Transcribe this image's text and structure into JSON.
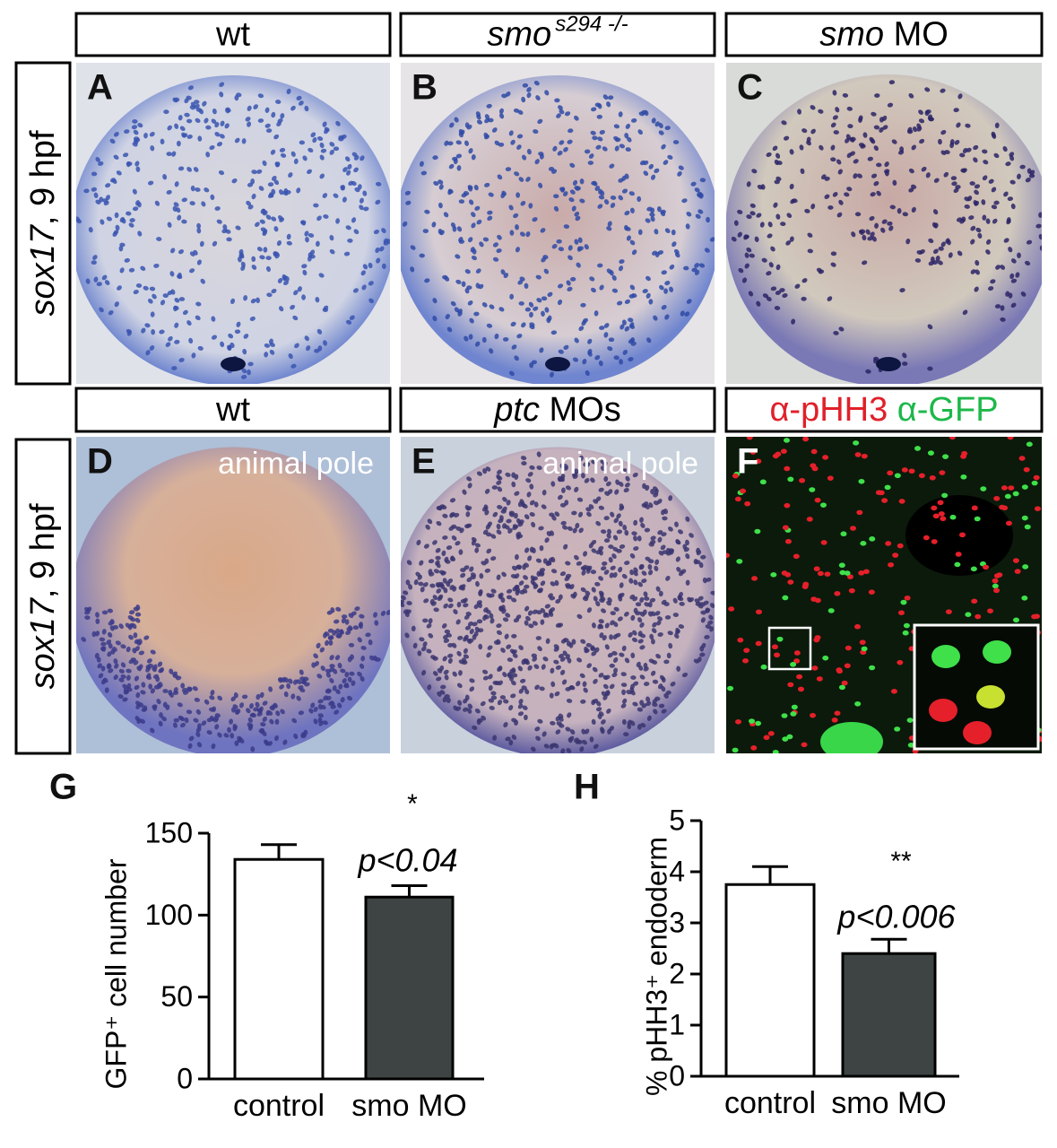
{
  "panels": [
    {
      "label": "A",
      "header": "wt"
    },
    {
      "label": "B",
      "header": {
        "gene": "smo",
        "allele": "s294 -/-"
      }
    },
    {
      "label": "C",
      "header": {
        "gene": "smo",
        "suffix": "MO"
      }
    },
    {
      "label": "D",
      "header": "wt",
      "note": "animal pole"
    },
    {
      "label": "E",
      "header": {
        "gene": "ptc",
        "suffix": "MOs"
      },
      "note": "animal pole"
    },
    {
      "label": "F",
      "header": {
        "red": "α-pHH3",
        "green": "α-GFP"
      }
    }
  ],
  "row_labels": [
    {
      "gene": "sox17",
      "stage": ", 9 hpf"
    },
    {
      "gene": "sox17",
      "stage": ", 9 hpf"
    }
  ],
  "chart_data": [
    {
      "type": "bar",
      "panel_label": "G",
      "ylabel": "GFP⁺ cell number",
      "categories": [
        "control",
        "smo MO"
      ],
      "values": [
        134,
        111
      ],
      "errors": [
        9,
        7
      ],
      "colors": [
        "#ffffff",
        "#3d4443"
      ],
      "ylim": [
        0,
        150
      ],
      "yticks": [
        0,
        50,
        100,
        150
      ],
      "annotation": "*",
      "p_value": "p<0.04"
    },
    {
      "type": "bar",
      "panel_label": "H",
      "ylabel": "% pHH3⁺ endoderm",
      "categories": [
        "control",
        "smo MO"
      ],
      "values": [
        3.75,
        2.4
      ],
      "errors": [
        0.35,
        0.28
      ],
      "colors": [
        "#ffffff",
        "#3d4443"
      ],
      "ylim": [
        0,
        5
      ],
      "yticks": [
        0,
        1,
        2,
        3,
        4,
        5
      ],
      "annotation": "**",
      "p_value": "p<0.006"
    }
  ]
}
